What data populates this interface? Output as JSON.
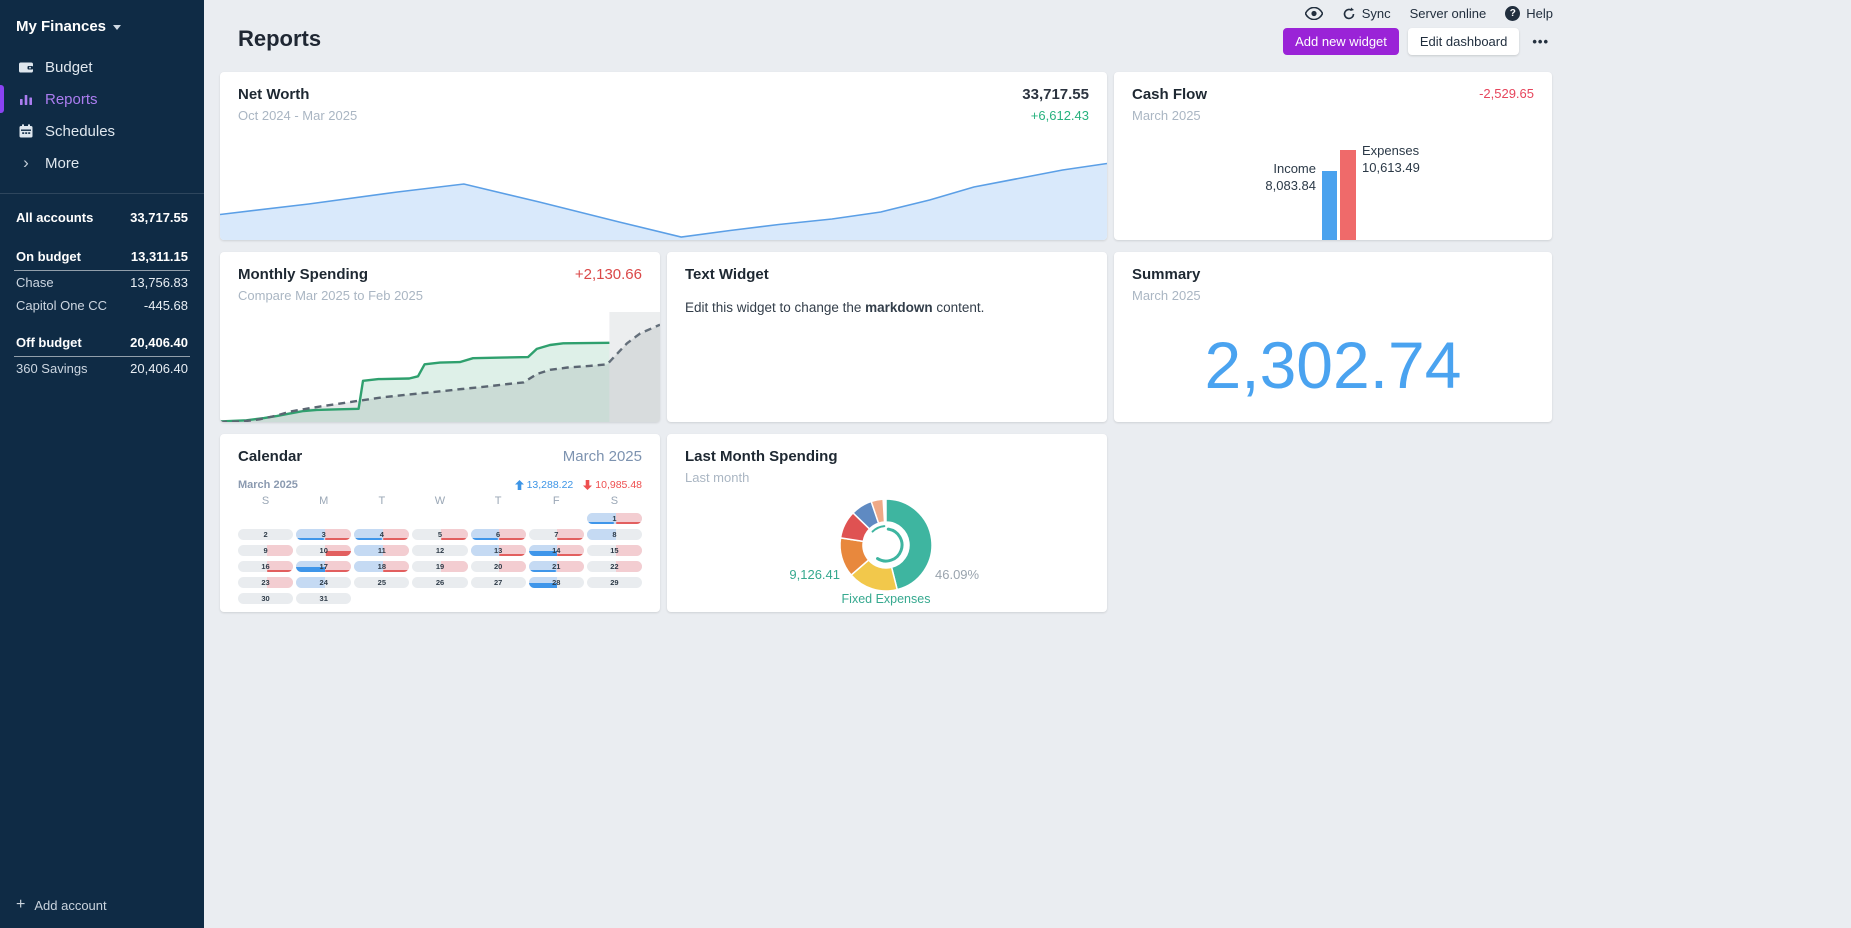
{
  "sidebar": {
    "budget_name": "My Finances",
    "items": [
      {
        "label": "Budget"
      },
      {
        "label": "Reports",
        "active": true
      },
      {
        "label": "Schedules"
      },
      {
        "label": "More"
      }
    ],
    "accounts": {
      "all": {
        "label": "All accounts",
        "value": "33,717.55"
      },
      "on_budget": {
        "label": "On budget",
        "value": "13,311.15"
      },
      "on_budget_accounts": [
        {
          "name": "Chase",
          "value": "13,756.83"
        },
        {
          "name": "Capitol One CC",
          "value": "-445.68"
        }
      ],
      "off_budget": {
        "label": "Off budget",
        "value": "20,406.40"
      },
      "off_budget_accounts": [
        {
          "name": "360 Savings",
          "value": "20,406.40"
        }
      ]
    },
    "add_account_label": "Add account"
  },
  "topbar": {
    "sync_label": "Sync",
    "server_status": "Server online",
    "help_label": "Help"
  },
  "header": {
    "title": "Reports",
    "add_widget_label": "Add new widget",
    "edit_dashboard_label": "Edit dashboard",
    "menu_label": "•••"
  },
  "widgets": {
    "net_worth": {
      "title": "Net Worth",
      "subtitle": "Oct 2024 - Mar 2025",
      "value": "33,717.55",
      "change": "+6,612.43"
    },
    "cash_flow": {
      "title": "Cash Flow",
      "subtitle": "March 2025",
      "value": "-2,529.65",
      "income_label": "Income",
      "income_value": "8,083.84",
      "expenses_label": "Expenses",
      "expenses_value": "10,613.49"
    },
    "monthly_spending": {
      "title": "Monthly Spending",
      "subtitle": "Compare Mar 2025 to Feb 2025",
      "value": "+2,130.66"
    },
    "text_widget": {
      "title": "Text Widget",
      "body_prefix": "Edit this widget to change the ",
      "body_bold": "markdown",
      "body_suffix": " content."
    },
    "summary": {
      "title": "Summary",
      "subtitle": "March 2025",
      "value": "2,302.74"
    },
    "calendar": {
      "title": "Calendar",
      "month_label": "March 2025",
      "month_sub": "March 2025",
      "income_total": "13,288.22",
      "expense_total": "10,985.48",
      "day_headers": [
        "S",
        "M",
        "T",
        "W",
        "T",
        "F",
        "S"
      ],
      "first_day_col": 6,
      "days": [
        {
          "d": 1,
          "bf": 1,
          "pf": 1,
          "bl": 1,
          "rl": 1
        },
        {
          "d": 2
        },
        {
          "d": 3,
          "bf": 1,
          "pf": 1,
          "bl": 1,
          "rl": 1
        },
        {
          "d": 4,
          "bf": 1,
          "pf": 1,
          "bl": 1,
          "rl": 1
        },
        {
          "d": 5,
          "pf": 1,
          "rl": 1
        },
        {
          "d": 6,
          "bf": 1,
          "pf": 1,
          "bl": 1,
          "rl": 1
        },
        {
          "d": 7,
          "pf": 1,
          "rl": 1
        },
        {
          "d": 8,
          "bf": 1
        },
        {
          "d": 9,
          "pf": 1
        },
        {
          "d": 10,
          "pf": 1,
          "rb": 1
        },
        {
          "d": 11,
          "bf": 1,
          "pf": 1
        },
        {
          "d": 12
        },
        {
          "d": 13,
          "bf": 1,
          "pf": 1,
          "rl": 1
        },
        {
          "d": 14,
          "bf": 1,
          "pf": 1,
          "bb": 1,
          "rl": 1
        },
        {
          "d": 15,
          "pf": 1
        },
        {
          "d": 16,
          "pf": 1,
          "rl": 1
        },
        {
          "d": 17,
          "bf": 1,
          "pf": 1,
          "bb": 1,
          "rl": 1
        },
        {
          "d": 18,
          "bf": 1,
          "pf": 1,
          "rl": 1
        },
        {
          "d": 19,
          "pf": 1
        },
        {
          "d": 20,
          "pf": 1
        },
        {
          "d": 21,
          "bf": 1,
          "pf": 1,
          "bl": 1
        },
        {
          "d": 22,
          "pf": 1
        },
        {
          "d": 23,
          "pf": 1
        },
        {
          "d": 24,
          "bf": 1
        },
        {
          "d": 25
        },
        {
          "d": 26
        },
        {
          "d": 27
        },
        {
          "d": 28,
          "bf": 1,
          "bb": 1
        },
        {
          "d": 29
        },
        {
          "d": 30
        },
        {
          "d": 31
        }
      ]
    },
    "last_month": {
      "title": "Last Month Spending",
      "subtitle": "Last month",
      "total": "9,126.41",
      "pct": "46.09%",
      "category": "Fixed Expenses"
    }
  },
  "chart_data": [
    {
      "id": "net_worth",
      "type": "area",
      "title": "Net Worth",
      "x_range": "Oct 2024 - Mar 2025",
      "current_value": 33717.55,
      "change": 6612.43,
      "line_color": "#5b9fe6",
      "fill_color": "#d9e9fb",
      "points_norm": [
        [
          0,
          0.745
        ],
        [
          0.1,
          0.64
        ],
        [
          0.2,
          0.52
        ],
        [
          0.275,
          0.44
        ],
        [
          0.36,
          0.62
        ],
        [
          0.45,
          0.82
        ],
        [
          0.52,
          0.97
        ],
        [
          0.575,
          0.905
        ],
        [
          0.63,
          0.845
        ],
        [
          0.69,
          0.79
        ],
        [
          0.745,
          0.72
        ],
        [
          0.8,
          0.6
        ],
        [
          0.85,
          0.47
        ],
        [
          0.9,
          0.385
        ],
        [
          0.95,
          0.3
        ],
        [
          1,
          0.235
        ]
      ]
    },
    {
      "id": "cash_flow",
      "type": "bar",
      "title": "Cash Flow",
      "categories": [
        "Income",
        "Expenses"
      ],
      "values": [
        8083.84,
        10613.49
      ],
      "value_labels": [
        "8,083.84",
        "10,613.49"
      ],
      "colors": [
        "#4aa2ee",
        "#ef6a6a"
      ],
      "net": -2529.65
    },
    {
      "id": "monthly_spending",
      "type": "line",
      "title": "Monthly Spending",
      "subtitle": "Compare Mar 2025 to Feb 2025",
      "delta": 2130.66,
      "future_overlay_from": 0.885,
      "series": [
        {
          "name": "Mar 2025",
          "style": "solid",
          "color": "#2fa06e",
          "fill": "rgba(47,160,110,0.16)",
          "points_norm": [
            [
              0,
              0.995
            ],
            [
              0.06,
              0.985
            ],
            [
              0.1,
              0.965
            ],
            [
              0.13,
              0.945
            ],
            [
              0.155,
              0.925
            ],
            [
              0.19,
              0.9
            ],
            [
              0.22,
              0.89
            ],
            [
              0.27,
              0.885
            ],
            [
              0.315,
              0.88
            ],
            [
              0.325,
              0.625
            ],
            [
              0.36,
              0.61
            ],
            [
              0.43,
              0.605
            ],
            [
              0.45,
              0.585
            ],
            [
              0.465,
              0.475
            ],
            [
              0.5,
              0.46
            ],
            [
              0.545,
              0.455
            ],
            [
              0.575,
              0.42
            ],
            [
              0.64,
              0.415
            ],
            [
              0.7,
              0.41
            ],
            [
              0.72,
              0.335
            ],
            [
              0.75,
              0.3
            ],
            [
              0.78,
              0.285
            ],
            [
              0.885,
              0.28
            ]
          ]
        },
        {
          "name": "Feb 2025",
          "style": "dashed",
          "color": "#5b6672",
          "fill": "rgba(108,117,125,0.16)",
          "points_norm": [
            [
              0,
              1.0
            ],
            [
              0.05,
              0.995
            ],
            [
              0.09,
              0.975
            ],
            [
              0.13,
              0.94
            ],
            [
              0.16,
              0.905
            ],
            [
              0.21,
              0.87
            ],
            [
              0.26,
              0.84
            ],
            [
              0.31,
              0.81
            ],
            [
              0.37,
              0.775
            ],
            [
              0.43,
              0.75
            ],
            [
              0.49,
              0.725
            ],
            [
              0.55,
              0.7
            ],
            [
              0.61,
              0.675
            ],
            [
              0.655,
              0.655
            ],
            [
              0.69,
              0.64
            ],
            [
              0.72,
              0.565
            ],
            [
              0.75,
              0.525
            ],
            [
              0.79,
              0.505
            ],
            [
              0.84,
              0.49
            ],
            [
              0.88,
              0.475
            ],
            [
              0.9,
              0.39
            ],
            [
              0.925,
              0.285
            ],
            [
              0.955,
              0.195
            ],
            [
              1,
              0.115
            ]
          ]
        }
      ]
    },
    {
      "id": "last_month_spending",
      "type": "pie",
      "title": "Last Month Spending",
      "total": 9126.41,
      "largest_slice_pct": 46.09,
      "slices": [
        {
          "label": "Fixed Expenses",
          "pct": 46.09,
          "color": "#3eb5a0"
        },
        {
          "label": "unlabeled",
          "pct": 17.6,
          "color": "#f2c84b"
        },
        {
          "label": "unlabeled",
          "pct": 13.8,
          "color": "#e8883d"
        },
        {
          "label": "unlabeled",
          "pct": 9.8,
          "color": "#df5252"
        },
        {
          "label": "unlabeled",
          "pct": 7.5,
          "color": "#5f8ac2"
        },
        {
          "label": "unlabeled",
          "pct": 4.2,
          "color": "#efa987"
        }
      ]
    }
  ]
}
